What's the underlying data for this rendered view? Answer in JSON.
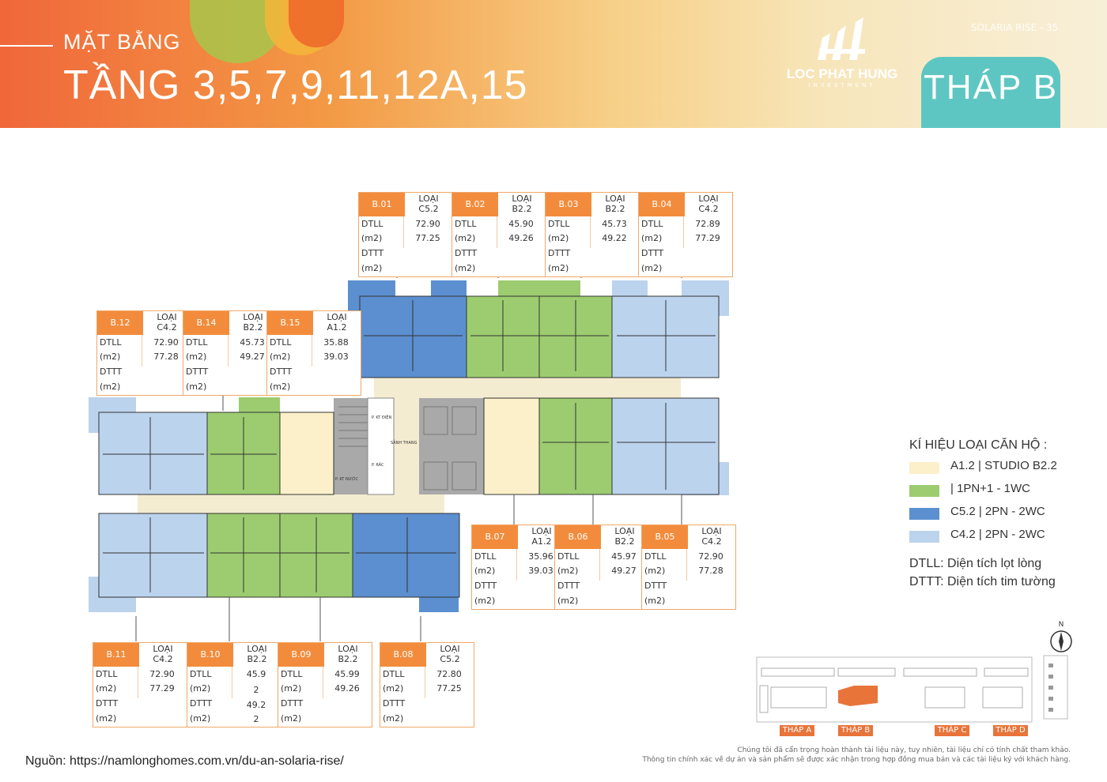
{
  "header": {
    "subtitle": "MẶT BẰNG",
    "title": "TẦNG 3,5,7,9,11,12A,15",
    "logo_name": "LOC PHAT HUNG",
    "logo_sub": "INVESTMENT",
    "project": "SOLARIA RISE - 35",
    "tower": "THÁP B"
  },
  "units": [
    {
      "code": "B.01",
      "type_l1": "LOẠI",
      "type_l2": "C5.2",
      "dtll": "72.90",
      "dttt": "77.25"
    },
    {
      "code": "B.02",
      "type_l1": "LOẠI",
      "type_l2": "B2.2",
      "dtll": "45.90",
      "dttt": "49.26"
    },
    {
      "code": "B.03",
      "type_l1": "LOẠI",
      "type_l2": "B2.2",
      "dtll": "45.73",
      "dttt": "49.22"
    },
    {
      "code": "B.04",
      "type_l1": "LOẠI",
      "type_l2": "C4.2",
      "dtll": "72.89",
      "dttt": "77.29"
    },
    {
      "code": "B.12",
      "type_l1": "LOẠI",
      "type_l2": "C4.2",
      "dtll": "72.90",
      "dttt": "77.28"
    },
    {
      "code": "B.14",
      "type_l1": "LOẠI",
      "type_l2": "B2.2",
      "dtll": "45.73",
      "dttt": "49.27"
    },
    {
      "code": "B.15",
      "type_l1": "LOẠI",
      "type_l2": "A1.2",
      "dtll": "35.88",
      "dttt": "39.03"
    },
    {
      "code": "B.07",
      "type_l1": "LOẠI",
      "type_l2": "A1.2",
      "dtll": "35.96",
      "dttt": "39.03"
    },
    {
      "code": "B.06",
      "type_l1": "LOẠI",
      "type_l2": "B2.2",
      "dtll": "45.97",
      "dttt": "49.27"
    },
    {
      "code": "B.05",
      "type_l1": "LOẠI",
      "type_l2": "C4.2",
      "dtll": "72.90",
      "dttt": "77.28"
    },
    {
      "code": "B.11",
      "type_l1": "LOẠI",
      "type_l2": "C4.2",
      "dtll": "72.90",
      "dttt": "77.29"
    },
    {
      "code": "B.10",
      "type_l1": "LOẠI",
      "type_l2": "B2.2",
      "dtll": "45.9",
      "dtll_b": "2",
      "dttt": "49.2",
      "dttt_b": "2"
    },
    {
      "code": "B.09",
      "type_l1": "LOẠI",
      "type_l2": "B2.2",
      "dtll": "45.99",
      "dttt": "49.26"
    },
    {
      "code": "B.08",
      "type_l1": "LOẠI",
      "type_l2": "C5.2",
      "dtll": "72.80",
      "dttt": "77.25"
    }
  ],
  "row_labels": {
    "dtll": "DTLL",
    "dttt": "DTTT",
    "unit": "(m2)"
  },
  "core_labels": {
    "lobby": "SẢNH THANG",
    "electric": "P. KT ĐIỆN",
    "trash": "P. RÁC",
    "water": "P. KT NƯỚC"
  },
  "legend": {
    "title": "KÍ HIỆU LOẠI CĂN HỘ :",
    "items": [
      {
        "label": "A1.2 | STUDIO B2.2",
        "color": "#fbf0c9"
      },
      {
        "label": "|   1PN+1   -   1WC",
        "color": "#9ccc6f"
      },
      {
        "label": "C5.2  |  2PN  -  2WC",
        "color": "#5b8fd0"
      },
      {
        "label": "C4.2 | 2PN - 2WC",
        "color": "#bcd3ee"
      }
    ],
    "dtll_def": "DTLL: Diện tích lọt lòng",
    "dttt_def": "DTTT: Diện tích tim tường"
  },
  "site": {
    "towers": [
      "THÁP A",
      "THÁP B",
      "THÁP C",
      "THÁP D"
    ],
    "compass": "N"
  },
  "source": "Nguồn: https://namlonghomes.com.vn/du-an-solaria-rise/",
  "disclaimer_1": "Chúng tôi đã cẩn trọng hoàn thành tài liệu này, tuy nhiên, tài liệu chỉ có tính chất tham khảo.",
  "disclaimer_2": "Thông tin chính xác về dự án và sản phẩm sẽ được xác nhận trong hợp đồng mua bán và các tài liệu ký với khách hàng.",
  "colors": {
    "studio": "#fbf0c9",
    "one_bed": "#9ccc6f",
    "c52": "#5b8fd0",
    "c42": "#bcd3ee",
    "accent": "#f28c3c",
    "tower_tab": "#5ec6c2"
  }
}
